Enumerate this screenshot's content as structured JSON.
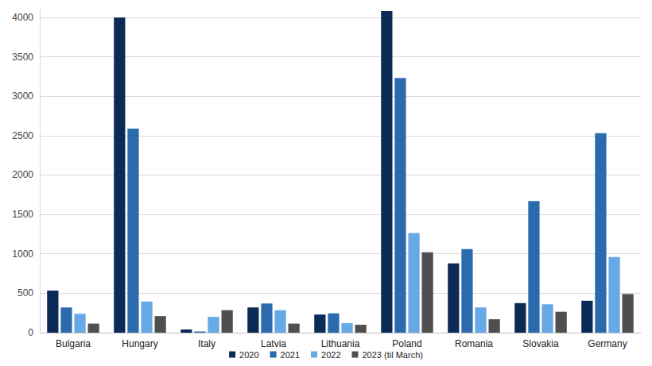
{
  "chart_data": {
    "type": "bar",
    "categories": [
      "Bulgaria",
      "Hungary",
      "Italy",
      "Latvia",
      "Lithuania",
      "Poland",
      "Romania",
      "Slovakia",
      "Germany"
    ],
    "series": [
      {
        "name": "2020",
        "color": "#0b2a55",
        "values": [
          535,
          4000,
          40,
          320,
          230,
          4080,
          880,
          375,
          405
        ]
      },
      {
        "name": "2021",
        "color": "#2c6aae",
        "values": [
          320,
          2590,
          15,
          370,
          245,
          3230,
          1060,
          1670,
          2530
        ]
      },
      {
        "name": "2022",
        "color": "#66a9e6",
        "values": [
          240,
          395,
          200,
          285,
          120,
          1265,
          320,
          360,
          960
        ]
      },
      {
        "name": "2023 (til March)",
        "color": "#4f4f4f",
        "values": [
          115,
          210,
          285,
          115,
          100,
          1020,
          170,
          265,
          490
        ]
      }
    ],
    "ylim": [
      0,
      4100
    ],
    "yticks": [
      0,
      500,
      1000,
      1500,
      2000,
      2500,
      3000,
      3500,
      4000
    ],
    "grid": true,
    "legend": "bottom"
  }
}
